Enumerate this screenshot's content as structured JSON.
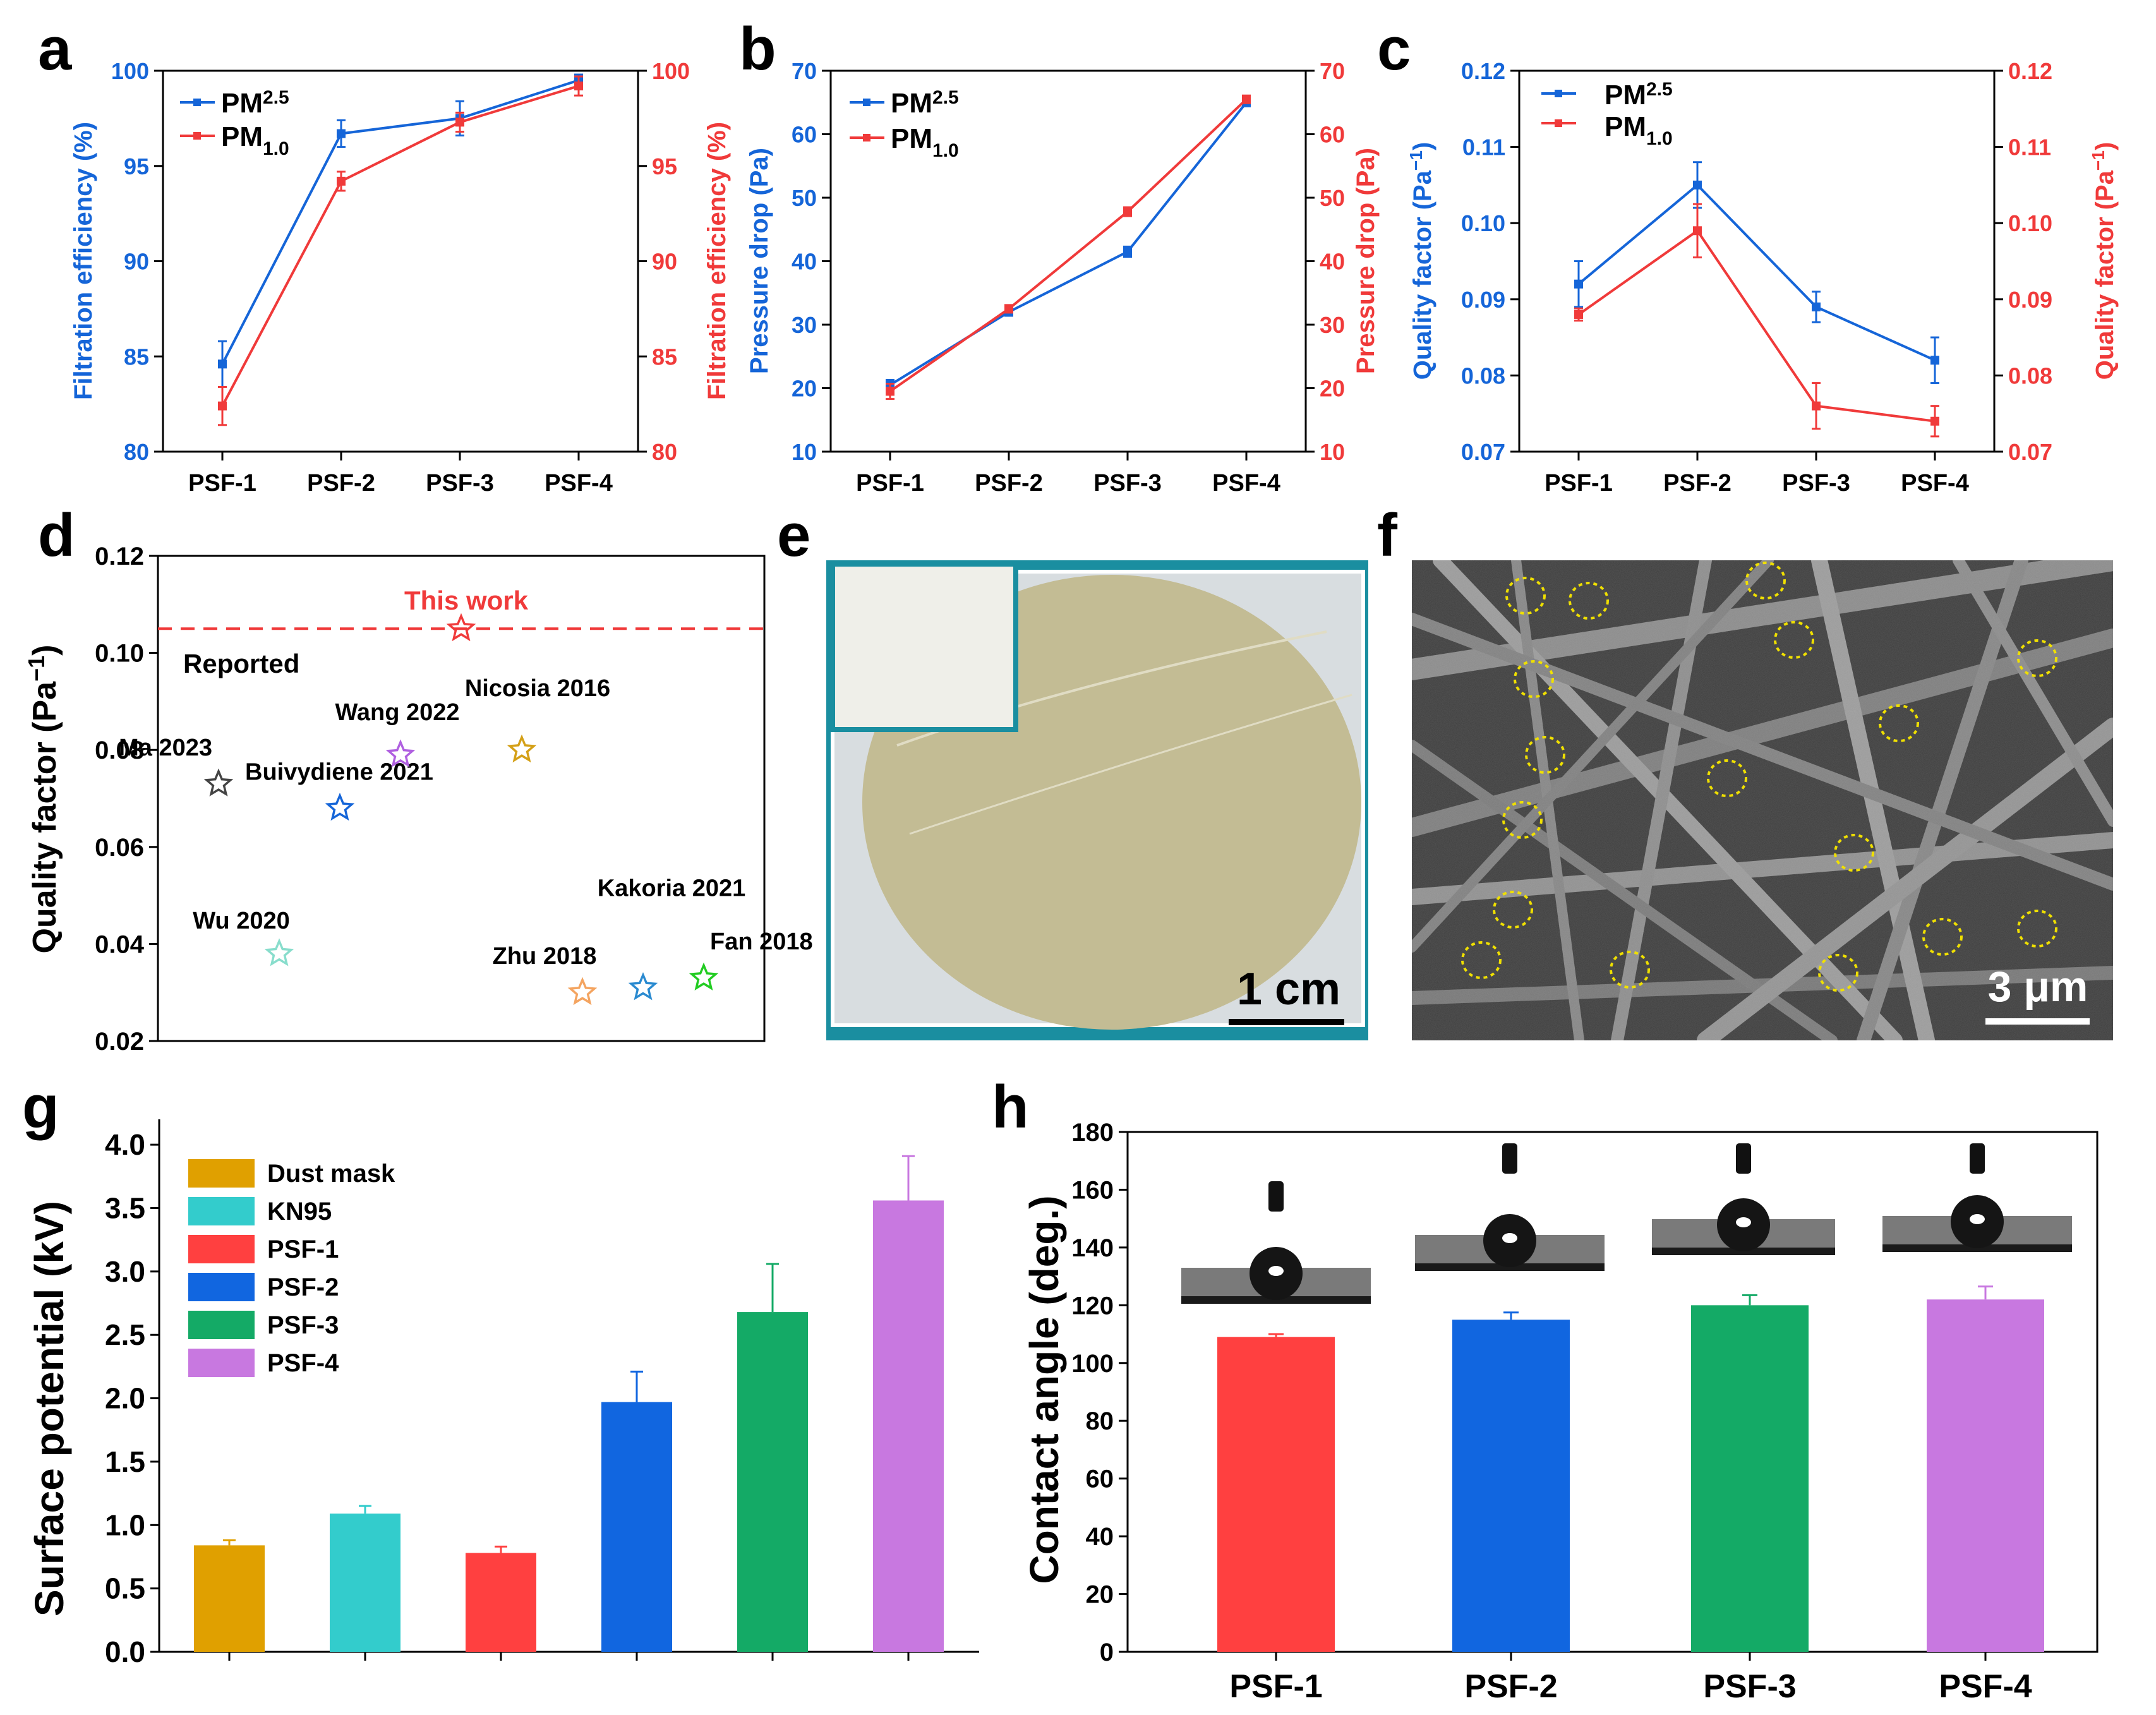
{
  "colors": {
    "blue": "#1565d8",
    "red": "#f03a3a",
    "dust_mask": "#e0a000",
    "kn95": "#33cccc",
    "psf1": "#ff4040",
    "psf2": "#1166e0",
    "psf3": "#14aa66",
    "psf4": "#c878e0",
    "frame": "#000000"
  },
  "panel_letters": {
    "a": "a",
    "b": "b",
    "c": "c",
    "d": "d",
    "e": "e",
    "f": "f",
    "g": "g",
    "h": "h"
  },
  "legend_pm": {
    "pm25_base": "PM",
    "pm25_sub": "2.5",
    "pm10_base": "PM",
    "pm10_sub": "1.0"
  },
  "chart_data": [
    {
      "panel": "a",
      "type": "line",
      "categories": [
        "PSF-1",
        "PSF-2",
        "PSF-3",
        "PSF-4"
      ],
      "ylabel_left": "Filtration efficiency (%)",
      "ylabel_right": "Filtration efficiency (%)",
      "ylim": [
        80,
        100
      ],
      "yticks": [
        "80",
        "85",
        "90",
        "95",
        "100"
      ],
      "series": [
        {
          "name": "PM2.5",
          "axis": "left",
          "color": "#1565d8",
          "values": [
            84.6,
            96.7,
            97.5,
            99.5
          ],
          "errors": [
            1.2,
            0.7,
            0.9,
            0.3
          ]
        },
        {
          "name": "PM1.0",
          "axis": "right",
          "color": "#f03a3a",
          "values": [
            82.4,
            94.2,
            97.3,
            99.2
          ],
          "errors": [
            1.0,
            0.5,
            0.5,
            0.5
          ]
        }
      ]
    },
    {
      "panel": "b",
      "type": "line",
      "categories": [
        "PSF-1",
        "PSF-2",
        "PSF-3",
        "PSF-4"
      ],
      "ylabel_left": "Pressure drop (Pa)",
      "ylabel_right": "Pressure drop (Pa)",
      "ylim": [
        10,
        70
      ],
      "yticks": [
        "10",
        "20",
        "30",
        "40",
        "50",
        "60",
        "70"
      ],
      "series": [
        {
          "name": "PM2.5",
          "axis": "left",
          "color": "#1565d8",
          "values": [
            20.5,
            32.0,
            41.5,
            65.0
          ],
          "errors": [
            0.8,
            0.6,
            0.8,
            0.6
          ]
        },
        {
          "name": "PM1.0",
          "axis": "right",
          "color": "#f03a3a",
          "values": [
            19.5,
            32.5,
            47.8,
            65.5
          ],
          "errors": [
            1.2,
            0.6,
            0.7,
            0.6
          ]
        }
      ]
    },
    {
      "panel": "c",
      "type": "line",
      "categories": [
        "PSF-1",
        "PSF-2",
        "PSF-3",
        "PSF-4"
      ],
      "ylabel_left": "Quality factor (Pa",
      "ylabel_right": "Quality factor (Pa",
      "ylabel_sup": "−1",
      "ylim": [
        0.07,
        0.12
      ],
      "yticks": [
        "0.07",
        "0.08",
        "0.09",
        "0.10",
        "0.11",
        "0.12"
      ],
      "series": [
        {
          "name": "PM2.5",
          "axis": "left",
          "color": "#1565d8",
          "values": [
            0.092,
            0.105,
            0.089,
            0.082
          ],
          "errors": [
            0.003,
            0.003,
            0.002,
            0.003
          ]
        },
        {
          "name": "PM1.0",
          "axis": "right",
          "color": "#f03a3a",
          "values": [
            0.088,
            0.099,
            0.076,
            0.074
          ],
          "errors": [
            0.0008,
            0.0035,
            0.003,
            0.002
          ]
        }
      ]
    },
    {
      "panel": "d",
      "type": "scatter",
      "ylabel": "Quality factor (Pa",
      "ylabel_sup": "−1",
      "ylim": [
        0.02,
        0.12
      ],
      "yticks": [
        "0.02",
        "0.04",
        "0.06",
        "0.08",
        "0.10",
        "0.12"
      ],
      "reference_line": 0.105,
      "text_this_work": "This work",
      "text_reported": "Reported",
      "points": [
        {
          "label": "This work",
          "x": 0.5,
          "y": 0.105,
          "color": "#f03a3a"
        },
        {
          "label": "Ma 2023",
          "x": 0.1,
          "y": 0.073,
          "color": "#444444"
        },
        {
          "label": "Buivydiene 2021",
          "x": 0.3,
          "y": 0.068,
          "color": "#1565d8"
        },
        {
          "label": "Wang 2022",
          "x": 0.4,
          "y": 0.079,
          "color": "#b060e0"
        },
        {
          "label": "Nicosia 2016",
          "x": 0.6,
          "y": 0.08,
          "color": "#d4a017"
        },
        {
          "label": "Wu 2020",
          "x": 0.2,
          "y": 0.038,
          "color": "#88ddcc"
        },
        {
          "label": "Zhu 2018",
          "x": 0.7,
          "y": 0.03,
          "color": "#f4a460"
        },
        {
          "label": "Kakoria 2021",
          "x": 0.8,
          "y": 0.031,
          "color": "#2a8ad0"
        },
        {
          "label": "Fan 2018",
          "x": 0.9,
          "y": 0.033,
          "color": "#22cc22"
        }
      ]
    },
    {
      "panel": "g",
      "type": "bar",
      "ylabel": "Surface potential (kV)",
      "ylim": [
        0,
        4.2
      ],
      "yticks": [
        "0.0",
        "0.5",
        "1.0",
        "1.5",
        "2.0",
        "2.5",
        "3.0",
        "3.5",
        "4.0"
      ],
      "categories": [
        "Dust mask",
        "KN95",
        "PSF-1",
        "PSF-2",
        "PSF-3",
        "PSF-4"
      ],
      "values": [
        0.84,
        1.09,
        0.78,
        1.97,
        2.68,
        3.56
      ],
      "errors": [
        0.04,
        0.06,
        0.05,
        0.24,
        0.38,
        0.35
      ],
      "colors": [
        "#e0a000",
        "#33cccc",
        "#ff4040",
        "#1166e0",
        "#14aa66",
        "#c878e0"
      ]
    },
    {
      "panel": "h",
      "type": "bar",
      "ylabel": "Contact angle (deg.)",
      "ylim": [
        0,
        180
      ],
      "yticks": [
        "0",
        "20",
        "40",
        "60",
        "80",
        "100",
        "120",
        "140",
        "160",
        "180"
      ],
      "categories": [
        "PSF-1",
        "PSF-2",
        "PSF-3",
        "PSF-4"
      ],
      "values": [
        109,
        115,
        120,
        122
      ],
      "errors": [
        1,
        2.5,
        3.5,
        4.5
      ],
      "colors": [
        "#ff4040",
        "#1166e0",
        "#14aa66",
        "#c878e0"
      ]
    }
  ],
  "photo_e": {
    "scale_text": "1 cm"
  },
  "sem_f": {
    "scale_text": "3 μm"
  }
}
